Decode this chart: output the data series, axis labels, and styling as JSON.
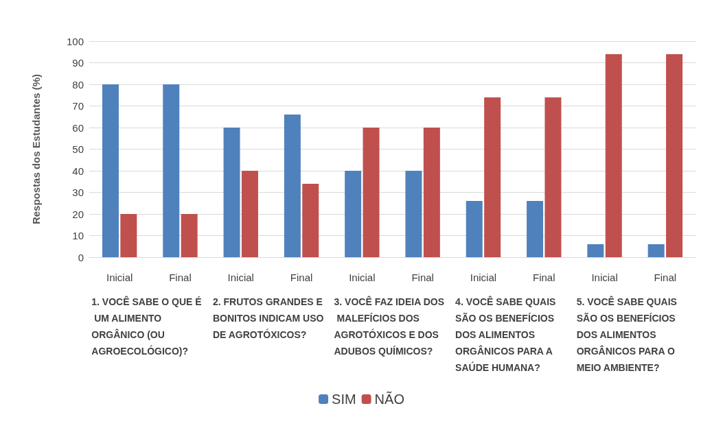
{
  "chart_data": {
    "type": "bar",
    "categories": [
      "Inicial",
      "Final",
      "Inicial",
      "Final",
      "Inicial",
      "Final",
      "Inicial",
      "Final",
      "Inicial",
      "Final"
    ],
    "series": [
      {
        "name": "SIM",
        "color": "#4f81bd",
        "values": [
          80,
          80,
          60,
          66,
          40,
          40,
          26,
          26,
          6,
          6
        ]
      },
      {
        "name": "NÃO",
        "color": "#c0504d",
        "values": [
          20,
          20,
          40,
          34,
          60,
          60,
          74,
          74,
          94,
          94
        ]
      }
    ],
    "ylabel": "Respostas dos Estudantes (%)",
    "ylim": [
      0,
      100
    ],
    "yticks": [
      0,
      10,
      20,
      30,
      40,
      50,
      60,
      70,
      80,
      90,
      100
    ],
    "annotations": [
      "1. VOCÊ SABE O QUE É UM ALIMENTO ORGÂNICO (OU AGROECOLÓGICO)?",
      "2. FRUTOS GRANDES E BONITOS INDICAM USO DE AGROTÓXICOS?",
      "3. VOCÊ FAZ IDEIA DOS MALEFÍCIOS DOS AGROTÓXICOS E DOS ADUBOS QUÍMICOS?",
      "4. VOCÊ SABE QUAIS SÃO OS BENEFÍCIOS DOS ALIMENTOS ORGÂNICOS PARA A SAÚDE HUMANA?",
      "5. VOCÊ SABE QUAIS SÃO OS BENEFÍCIOS DOS ALIMENTOS ORGÂNICOS PARA O MEIO AMBIENTE?"
    ],
    "grid": "y",
    "legend": "bottom"
  }
}
